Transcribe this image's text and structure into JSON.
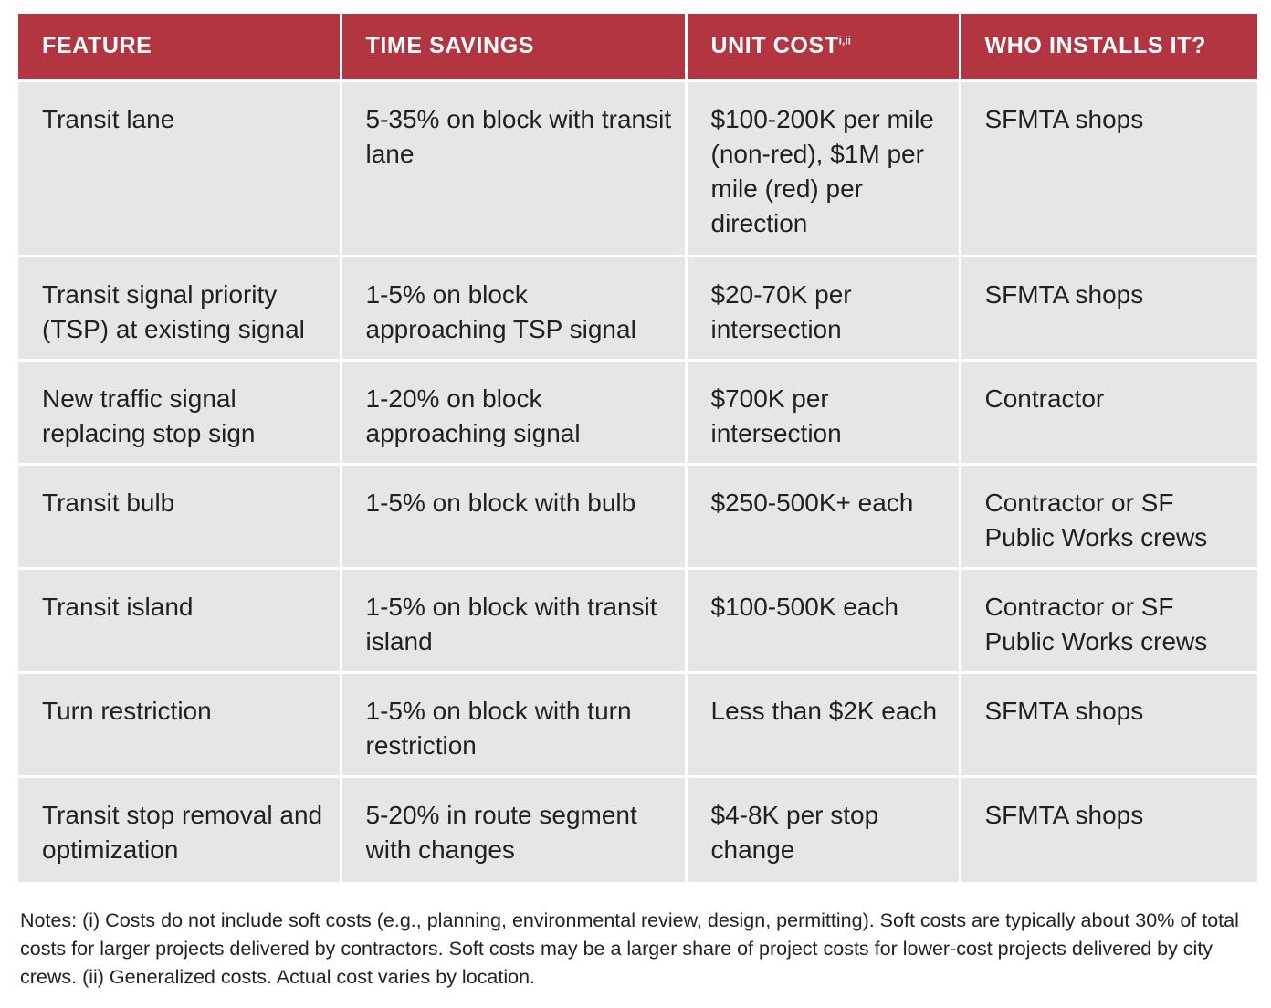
{
  "table": {
    "headers": {
      "feature": "FEATURE",
      "time_savings": "TIME SAVINGS",
      "unit_cost": "UNIT COST",
      "unit_cost_sup": "i,ii",
      "who_installs": "WHO INSTALLS IT?"
    },
    "header_color": "#b33542",
    "row_color": "#e6e6e6",
    "rows": [
      {
        "feature": "Transit lane",
        "time_savings": "5-35% on block with transit lane",
        "unit_cost": "$100-200K per mile (non-red), $1M per mile (red) per direction",
        "who_installs": "SFMTA shops"
      },
      {
        "feature": "Transit signal priority (TSP) at existing signal",
        "time_savings": "1-5% on block approaching TSP signal",
        "unit_cost": "$20-70K per intersection",
        "who_installs": "SFMTA shops"
      },
      {
        "feature": "New traffic signal replacing stop sign",
        "time_savings": "1-20% on block approaching signal",
        "unit_cost": "$700K per intersection",
        "who_installs": "Contractor"
      },
      {
        "feature": "Transit bulb",
        "time_savings": "1-5% on block with bulb",
        "unit_cost": "$250-500K+ each",
        "who_installs": "Contractor or SF Public Works crews"
      },
      {
        "feature": "Transit island",
        "time_savings": "1-5% on block with transit island",
        "unit_cost": "$100-500K each",
        "who_installs": "Contractor or SF Public Works crews"
      },
      {
        "feature": "Turn restriction",
        "time_savings": "1-5% on block with turn restriction",
        "unit_cost": "Less than $2K each",
        "who_installs": "SFMTA shops"
      },
      {
        "feature": "Transit stop removal and optimization",
        "time_savings": "5-20% in route segment with changes",
        "unit_cost": "$4-8K per stop change",
        "who_installs": "SFMTA shops"
      }
    ]
  },
  "notes": "Notes: (i) Costs do not include soft costs (e.g., planning, environmental review, design, permitting). Soft costs are typically about 30% of total costs for larger projects delivered by contractors. Soft costs may be a larger share of project costs for lower-cost projects delivered by city crews. (ii) Generalized costs. Actual cost varies by location."
}
